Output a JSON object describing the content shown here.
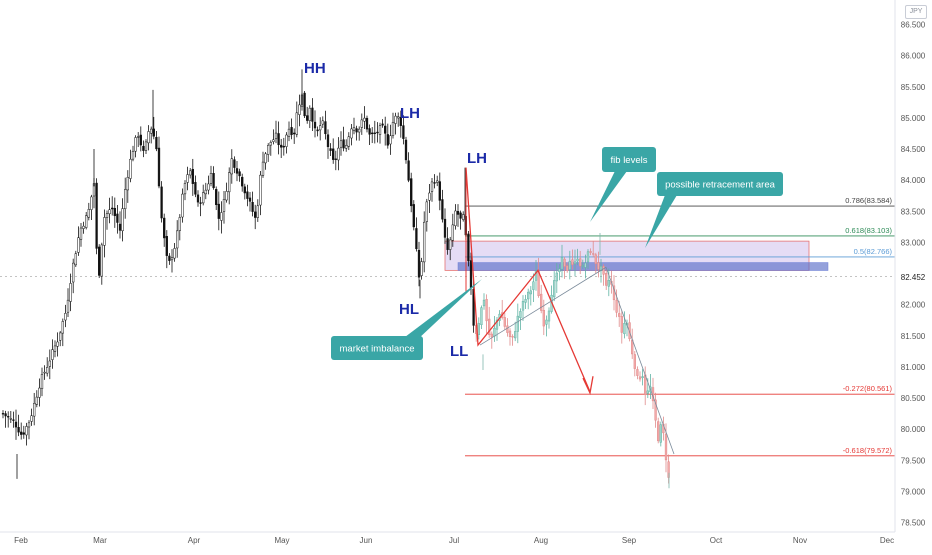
{
  "currency": "JPY",
  "current_price_label": "82.452",
  "chart_data": {
    "type": "candlestick",
    "currency": "JPY",
    "ylim": [
      78.5,
      86.75
    ],
    "y_ticks": [
      "78.500",
      "79.000",
      "79.500",
      "80.000",
      "80.500",
      "81.000",
      "81.500",
      "82.000",
      "82.500",
      "83.000",
      "83.500",
      "84.000",
      "84.500",
      "85.000",
      "85.500",
      "86.000",
      "86.500"
    ],
    "x_ticks": [
      "Feb",
      "Mar",
      "Apr",
      "May",
      "Jun",
      "Jul",
      "Aug",
      "Sep",
      "Oct",
      "Nov",
      "Dec"
    ],
    "current_price": 82.452,
    "fib_levels": [
      {
        "label": "0.786(83.584)",
        "value": 83.584,
        "color": "#444444"
      },
      {
        "label": "0.618(83.103)",
        "value": 83.103,
        "color": "#2e8b57"
      },
      {
        "label": "0.5(82.766)",
        "value": 82.766,
        "color": "#5b9bd5"
      },
      {
        "label": "-0.272(80.561)",
        "value": 80.561,
        "color": "#e53935"
      },
      {
        "label": "-0.618(79.572)",
        "value": 79.572,
        "color": "#e53935"
      }
    ],
    "annotations": {
      "waves": [
        "HH",
        "LH",
        "LH",
        "HL",
        "LL"
      ],
      "callouts": [
        "fib levels",
        "possible retracement area",
        "market imbalance"
      ]
    },
    "retracement_zone": [
      82.55,
      83.02
    ],
    "imbalance_band": [
      82.58,
      82.66
    ]
  }
}
